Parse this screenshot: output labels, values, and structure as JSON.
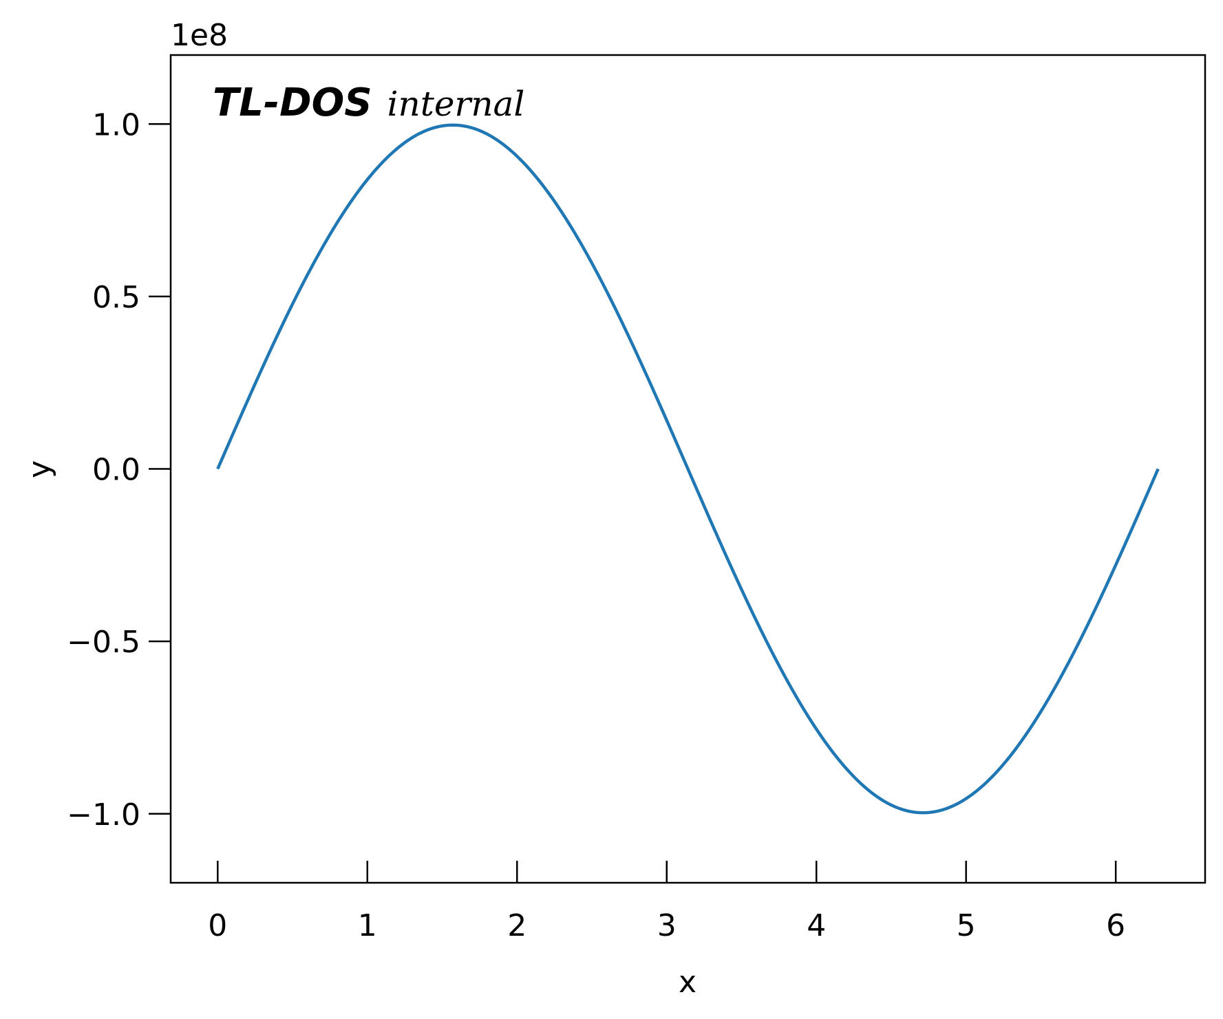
{
  "chart_data": {
    "type": "line",
    "title_bold": "TL-DOS",
    "title_italic": "internal",
    "xlabel": "x",
    "ylabel": "y",
    "y_offset_label": "1e8",
    "xlim": [
      -0.314,
      6.597
    ],
    "ylim": [
      -120000000,
      120000000
    ],
    "x_ticks": [
      0,
      1,
      2,
      3,
      4,
      5,
      6
    ],
    "x_tick_labels": [
      "0",
      "1",
      "2",
      "3",
      "4",
      "5",
      "6"
    ],
    "y_ticks": [
      -100000000,
      -50000000,
      0,
      50000000,
      100000000
    ],
    "y_tick_labels": [
      "−1.0",
      "−0.5",
      "0.0",
      "0.5",
      "1.0"
    ],
    "grid": false,
    "series": [
      {
        "color": "#1f77b4",
        "x_start": 0,
        "x_end": 6.2832,
        "x": [
          0,
          0.5,
          1.0,
          1.5,
          2.0,
          2.5,
          3.0,
          3.5,
          4.0,
          4.5,
          5.0,
          5.5,
          6.0,
          6.2832
        ],
        "y": [
          0,
          47900000,
          84100000,
          99700000,
          90900000,
          59800000,
          14100000,
          -35100000,
          -75700000,
          -97800000,
          -95900000,
          -70600000,
          -27900000,
          0
        ]
      }
    ]
  }
}
